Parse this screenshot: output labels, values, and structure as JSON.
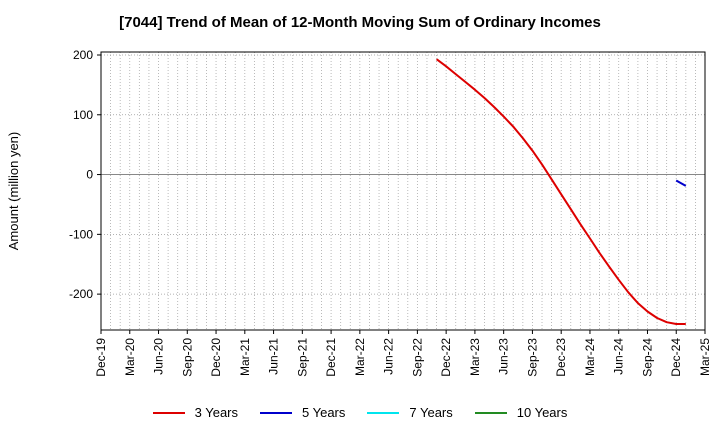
{
  "chart_data": {
    "type": "line",
    "title": "[7044]  Trend of Mean of 12-Month Moving Sum of Ordinary Incomes",
    "ylabel": "Amount (million yen)",
    "xlabel": "",
    "ylim": [
      -260,
      205
    ],
    "yticks": [
      200,
      100,
      0,
      -100,
      -200
    ],
    "xlim": [
      "2019-12",
      "2025-03"
    ],
    "xticks": [
      "Dec-19",
      "Mar-20",
      "Jun-20",
      "Sep-20",
      "Dec-20",
      "Mar-21",
      "Jun-21",
      "Sep-21",
      "Dec-21",
      "Mar-22",
      "Jun-22",
      "Sep-22",
      "Dec-22",
      "Mar-23",
      "Jun-23",
      "Sep-23",
      "Dec-23",
      "Mar-24",
      "Jun-24",
      "Sep-24",
      "Dec-24",
      "Mar-25"
    ],
    "grid": true,
    "legend_position": "bottom",
    "series": [
      {
        "name": "3 Years",
        "color": "#dd0000",
        "points": [
          [
            "2022-11",
            193
          ],
          [
            "2022-12",
            181
          ],
          [
            "2023-01",
            168
          ],
          [
            "2023-02",
            155
          ],
          [
            "2023-03",
            142
          ],
          [
            "2023-04",
            128
          ],
          [
            "2023-05",
            113
          ],
          [
            "2023-06",
            97
          ],
          [
            "2023-07",
            80
          ],
          [
            "2023-08",
            61
          ],
          [
            "2023-09",
            40
          ],
          [
            "2023-10",
            17
          ],
          [
            "2023-11",
            -8
          ],
          [
            "2023-12",
            -33
          ],
          [
            "2024-01",
            -58
          ],
          [
            "2024-02",
            -83
          ],
          [
            "2024-03",
            -107
          ],
          [
            "2024-04",
            -131
          ],
          [
            "2024-05",
            -154
          ],
          [
            "2024-06",
            -176
          ],
          [
            "2024-07",
            -197
          ],
          [
            "2024-08",
            -215
          ],
          [
            "2024-09",
            -229
          ],
          [
            "2024-10",
            -240
          ],
          [
            "2024-11",
            -247
          ],
          [
            "2024-12",
            -250
          ],
          [
            "2025-01",
            -250
          ]
        ]
      },
      {
        "name": "5 Years",
        "color": "#0000cc",
        "points": [
          [
            "2024-12",
            -10
          ],
          [
            "2025-01",
            -19
          ]
        ]
      },
      {
        "name": "7 Years",
        "color": "#00e5ee",
        "points": []
      },
      {
        "name": "10 Years",
        "color": "#228b22",
        "points": []
      }
    ]
  }
}
